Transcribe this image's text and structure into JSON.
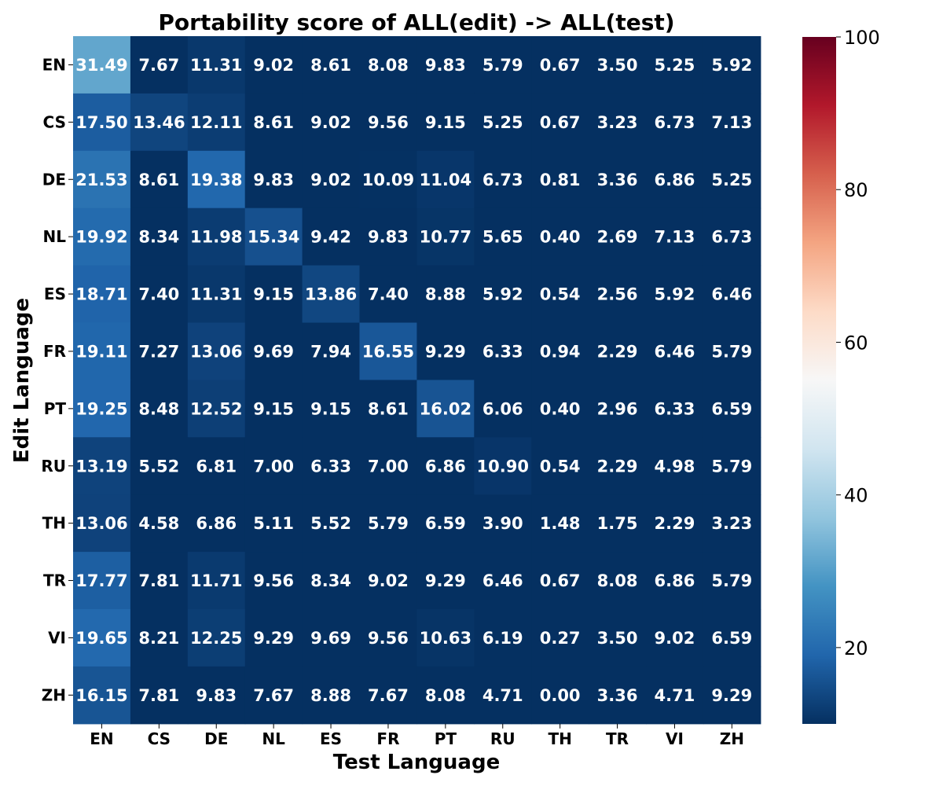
{
  "chart_data": {
    "type": "heatmap",
    "title": "Portability score of ALL(edit) -> ALL(test)",
    "xlabel": "Test Language",
    "ylabel": "Edit Language",
    "x_categories": [
      "EN",
      "CS",
      "DE",
      "NL",
      "ES",
      "FR",
      "PT",
      "RU",
      "TH",
      "TR",
      "VI",
      "ZH"
    ],
    "y_categories": [
      "EN",
      "CS",
      "DE",
      "NL",
      "ES",
      "FR",
      "PT",
      "RU",
      "TH",
      "TR",
      "VI",
      "ZH"
    ],
    "values": [
      [
        31.49,
        7.67,
        11.31,
        9.02,
        8.61,
        8.08,
        9.83,
        5.79,
        0.67,
        3.5,
        5.25,
        5.92
      ],
      [
        17.5,
        13.46,
        12.11,
        8.61,
        9.02,
        9.56,
        9.15,
        5.25,
        0.67,
        3.23,
        6.73,
        7.13
      ],
      [
        21.53,
        8.61,
        19.38,
        9.83,
        9.02,
        10.09,
        11.04,
        6.73,
        0.81,
        3.36,
        6.86,
        5.25
      ],
      [
        19.92,
        8.34,
        11.98,
        15.34,
        9.42,
        9.83,
        10.77,
        5.65,
        0.4,
        2.69,
        7.13,
        6.73
      ],
      [
        18.71,
        7.4,
        11.31,
        9.15,
        13.86,
        7.4,
        8.88,
        5.92,
        0.54,
        2.56,
        5.92,
        6.46
      ],
      [
        19.11,
        7.27,
        13.06,
        9.69,
        7.94,
        16.55,
        9.29,
        6.33,
        0.94,
        2.29,
        6.46,
        5.79
      ],
      [
        19.25,
        8.48,
        12.52,
        9.15,
        9.15,
        8.61,
        16.02,
        6.06,
        0.4,
        2.96,
        6.33,
        6.59
      ],
      [
        13.19,
        5.52,
        6.81,
        7.0,
        6.33,
        7.0,
        6.86,
        10.9,
        0.54,
        2.29,
        4.98,
        5.79
      ],
      [
        13.06,
        4.58,
        6.86,
        5.11,
        5.52,
        5.79,
        6.59,
        3.9,
        1.48,
        1.75,
        2.29,
        3.23
      ],
      [
        17.77,
        7.81,
        11.71,
        9.56,
        8.34,
        9.02,
        9.29,
        6.46,
        0.67,
        8.08,
        6.86,
        5.79
      ],
      [
        19.65,
        8.21,
        12.25,
        9.29,
        9.69,
        9.56,
        10.63,
        6.19,
        0.27,
        3.5,
        9.02,
        6.59
      ],
      [
        16.15,
        7.81,
        9.83,
        7.67,
        8.88,
        7.67,
        8.08,
        4.71,
        0.0,
        3.36,
        4.71,
        9.29
      ]
    ],
    "colorbar": {
      "range": [
        10,
        100
      ],
      "ticks": [
        20,
        40,
        60,
        80,
        100
      ],
      "colormap": "RdBu_r",
      "colormap_stops": [
        "#053061",
        "#2166ac",
        "#4393c3",
        "#92c5de",
        "#d1e5f0",
        "#f7f7f7",
        "#fddbc7",
        "#f4a582",
        "#d6604d",
        "#b2182b",
        "#67001f"
      ]
    },
    "grid": false,
    "legend": "colorbar-right"
  }
}
